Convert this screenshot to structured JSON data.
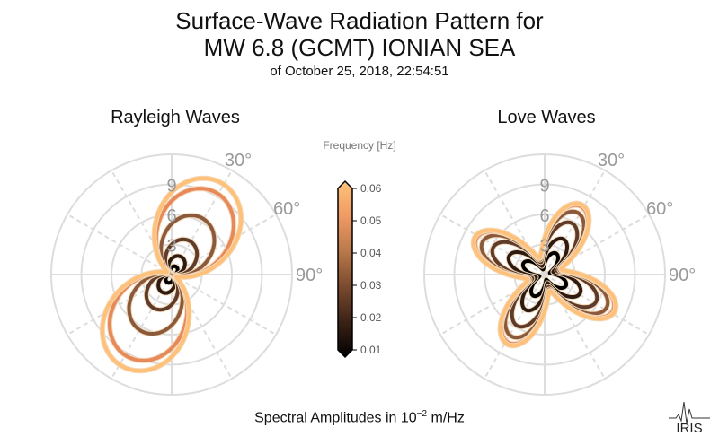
{
  "title_line1": "Surface-Wave Radiation Pattern for",
  "title_line2": "MW 6.8 (GCMT) IONIAN SEA",
  "subtitle": "of October 25, 2018, 22:54:51",
  "footer": {
    "prefix": "Spectral Amplitudes in 10",
    "exponent": "−2",
    "suffix": " m/Hz"
  },
  "logo_text": "IRIS",
  "colorbar": {
    "label": "Frequency [Hz]",
    "ticks": [
      "0.06",
      "0.05",
      "0.04",
      "0.03",
      "0.02",
      "0.01"
    ],
    "range": [
      0.01,
      0.06
    ],
    "colors": [
      "#000000",
      "#3b2216",
      "#7a4a2e",
      "#b8784a",
      "#f09a64",
      "#ffc37a"
    ]
  },
  "chart_data": [
    {
      "type": "polar-line",
      "title": "Rayleigh Waves",
      "radial_ticks": [
        "3",
        "6",
        "9"
      ],
      "radial_values": [
        3,
        6,
        9
      ],
      "rmax": 12,
      "angle_ticks": [
        "30°",
        "60°",
        "90°"
      ],
      "angle_values": [
        30,
        60,
        90
      ],
      "pattern": {
        "lobe_axis_deg": 28,
        "kind": "two-lobe",
        "min_ratio": 0.05
      },
      "series": [
        {
          "frequency": 0.01,
          "amplitude": 0.9,
          "color": "#000000"
        },
        {
          "frequency": 0.02,
          "amplitude": 2.0,
          "color": "#2d1a12"
        },
        {
          "frequency": 0.03,
          "amplitude": 3.8,
          "color": "#5e3b2a"
        },
        {
          "frequency": 0.035,
          "amplitude": 6.4,
          "color": "#8b5a3c"
        },
        {
          "frequency": 0.045,
          "amplitude": 9.3,
          "color": "#e8895a"
        },
        {
          "frequency": 0.055,
          "amplitude": 10.4,
          "color": "#ffc07a"
        }
      ]
    },
    {
      "type": "polar-line",
      "title": "Love Waves",
      "radial_ticks": [
        "3",
        "6",
        "9"
      ],
      "radial_values": [
        3,
        6,
        9
      ],
      "rmax": 12,
      "angle_ticks": [
        "30°",
        "60°",
        "90°"
      ],
      "angle_values": [
        30,
        60,
        90
      ],
      "pattern": {
        "lobe_axis_deg": 28,
        "kind": "four-lobe",
        "min_ratio": 0.22
      },
      "series": [
        {
          "frequency": 0.01,
          "amplitude": 2.4,
          "color": "#000000"
        },
        {
          "frequency": 0.02,
          "amplitude": 4.0,
          "color": "#2d1a12"
        },
        {
          "frequency": 0.03,
          "amplitude": 5.8,
          "color": "#5e3b2a"
        },
        {
          "frequency": 0.035,
          "amplitude": 7.0,
          "color": "#8b5a3c"
        },
        {
          "frequency": 0.045,
          "amplitude": 7.7,
          "color": "#e8895a"
        },
        {
          "frequency": 0.055,
          "amplitude": 7.9,
          "color": "#ffc07a"
        }
      ]
    }
  ]
}
